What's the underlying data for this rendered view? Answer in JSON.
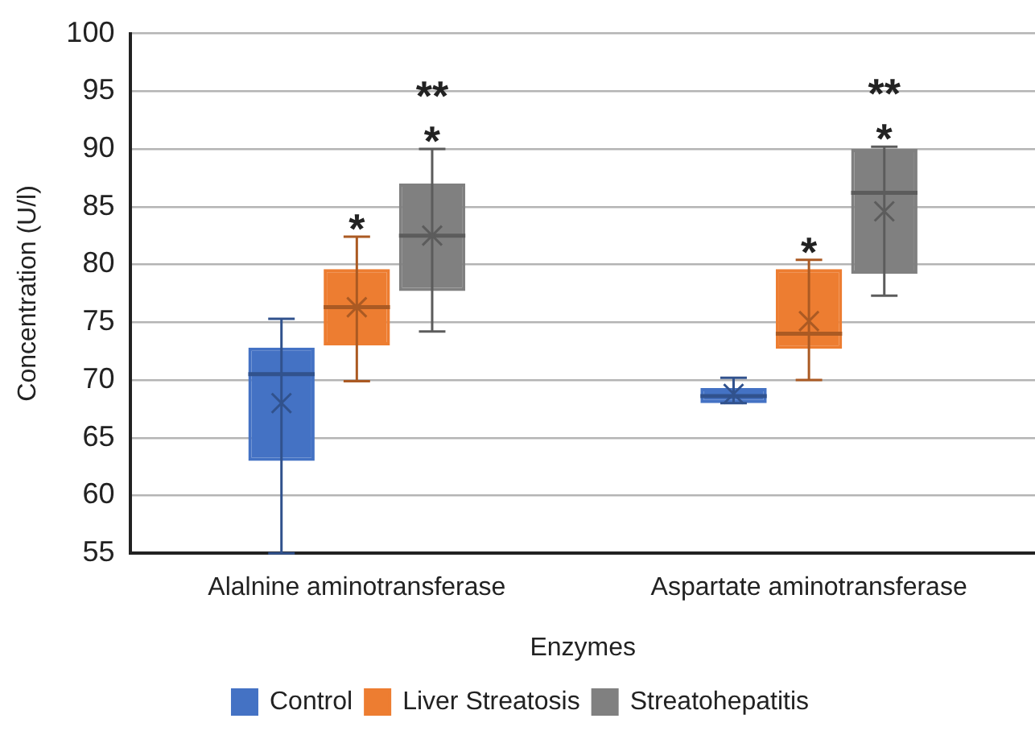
{
  "chart_data": {
    "type": "box",
    "xlabel": "Enzymes",
    "ylabel": "Concentration (U/l)",
    "categories": [
      "Alalnine aminotransferase",
      "Aspartate aminotransferase"
    ],
    "ylim": [
      55,
      100
    ],
    "yticks": [
      55,
      60,
      65,
      70,
      75,
      80,
      85,
      90,
      95,
      100
    ],
    "grid": "y",
    "legend": "bottom",
    "series": [
      {
        "name": "Control",
        "color": "#4472c4",
        "boxes": [
          {
            "low": 55,
            "q1": 63,
            "median": 70.5,
            "q3": 72.8,
            "high": 75.3,
            "mean": 68
          },
          {
            "low": 68,
            "q1": 68,
            "median": 68.6,
            "q3": 69.3,
            "high": 70.2,
            "mean": 68.8
          }
        ]
      },
      {
        "name": "Liver Streatosis",
        "color": "#ed7d31",
        "boxes": [
          {
            "low": 69.9,
            "q1": 73,
            "median": 76.3,
            "q3": 79.6,
            "high": 82.4,
            "mean": 76.3
          },
          {
            "low": 70,
            "q1": 72.7,
            "median": 74,
            "q3": 79.6,
            "high": 80.4,
            "mean": 75.1
          }
        ]
      },
      {
        "name": "Streatohepatitis",
        "color": "#808080",
        "boxes": [
          {
            "low": 74.2,
            "q1": 77.7,
            "median": 82.5,
            "q3": 87,
            "high": 90,
            "mean": 82.5
          },
          {
            "low": 77.3,
            "q1": 79.2,
            "median": 86.2,
            "q3": 90,
            "high": 90.2,
            "mean": 84.6
          }
        ]
      }
    ],
    "annotations": [
      "*",
      "*",
      "**",
      "*",
      "*",
      "**"
    ]
  }
}
